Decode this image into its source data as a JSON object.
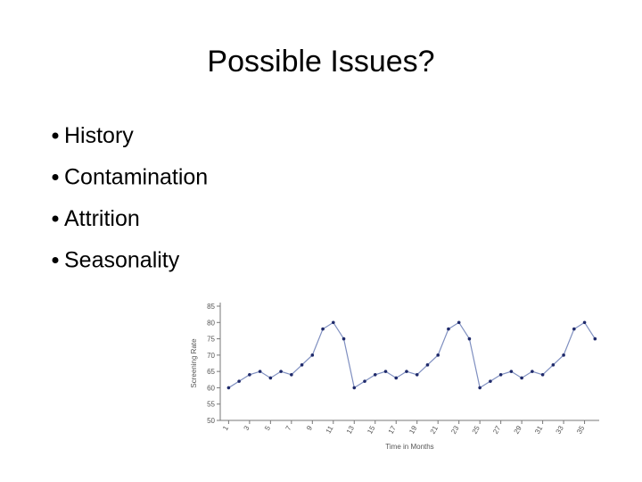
{
  "title": "Possible Issues?",
  "bullets": [
    "History",
    "Contamination",
    "Attrition",
    "Seasonality"
  ],
  "chart_data": {
    "type": "line",
    "ylabel": "Screening Rate",
    "xlabel": "Time in Months",
    "x": [
      1,
      2,
      3,
      4,
      5,
      6,
      7,
      8,
      9,
      10,
      11,
      12,
      13,
      14,
      15,
      16,
      17,
      18,
      19,
      20,
      21,
      22,
      23,
      24,
      25,
      26,
      27,
      28,
      29,
      30,
      31,
      32,
      33,
      34,
      35,
      36
    ],
    "values": [
      60,
      62,
      64,
      65,
      63,
      65,
      64,
      67,
      70,
      78,
      80,
      75,
      60,
      62,
      64,
      65,
      63,
      65,
      64,
      67,
      70,
      78,
      80,
      75,
      60,
      62,
      64,
      65,
      63,
      65,
      64,
      67,
      70,
      78,
      80,
      75
    ],
    "color": "#7f8fc0",
    "marker_color": "#1f2a6b",
    "xlim": [
      0.2,
      36.4
    ],
    "xticks": [
      1,
      3,
      5,
      7,
      9,
      11,
      13,
      15,
      17,
      19,
      21,
      23,
      25,
      27,
      29,
      31,
      33,
      35
    ],
    "ylim": [
      50,
      85
    ],
    "yticks": [
      50,
      55,
      60,
      65,
      70,
      75,
      80,
      85
    ]
  }
}
